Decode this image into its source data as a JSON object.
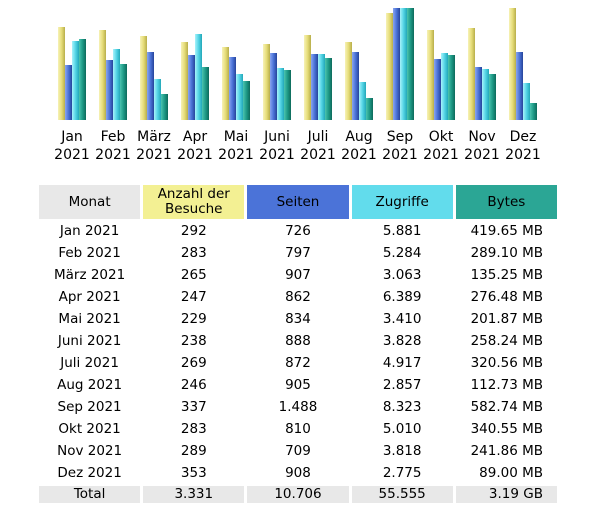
{
  "chart_data": {
    "type": "bar",
    "categories": [
      "Jan 2021",
      "Feb 2021",
      "März 2021",
      "Apr 2021",
      "Mai 2021",
      "Juni 2021",
      "Juli 2021",
      "Aug 2021",
      "Sep 2021",
      "Okt 2021",
      "Nov 2021",
      "Dez 2021"
    ],
    "category_lines": [
      [
        "Jan",
        "2021"
      ],
      [
        "Feb",
        "2021"
      ],
      [
        "März",
        "2021"
      ],
      [
        "Apr",
        "2021"
      ],
      [
        "Mai",
        "2021"
      ],
      [
        "Juni",
        "2021"
      ],
      [
        "Juli",
        "2021"
      ],
      [
        "Aug",
        "2021"
      ],
      [
        "Sep",
        "2021"
      ],
      [
        "Okt",
        "2021"
      ],
      [
        "Nov",
        "2021"
      ],
      [
        "Dez",
        "2021"
      ]
    ],
    "series": [
      {
        "name": "Anzahl der Besuche",
        "color": "#ece58c",
        "values": [
          292,
          283,
          265,
          247,
          229,
          238,
          269,
          246,
          337,
          283,
          289,
          353
        ]
      },
      {
        "name": "Seiten",
        "color": "#4b73d8",
        "values": [
          726,
          797,
          907,
          862,
          834,
          888,
          872,
          905,
          1488,
          810,
          709,
          908
        ]
      },
      {
        "name": "Zugriffe",
        "color": "#62dcec",
        "values": [
          5881,
          5284,
          3063,
          6389,
          3410,
          3828,
          4917,
          2857,
          8323,
          5010,
          3818,
          2775
        ]
      },
      {
        "name": "Bytes",
        "color": "#2ba695",
        "values": [
          419.65,
          289.1,
          135.25,
          276.48,
          201.87,
          258.24,
          320.56,
          112.73,
          582.74,
          340.55,
          241.86,
          89.0
        ]
      }
    ],
    "scaling": "each series scaled to its own maximum",
    "legend": "none",
    "grid": false
  },
  "table": {
    "headers": {
      "month": "Monat",
      "visits_line1": "Anzahl der",
      "visits_line2": "Besuche",
      "pages": "Seiten",
      "hits": "Zugriffe",
      "bytes": "Bytes"
    },
    "rows": [
      {
        "month": "Jan 2021",
        "visits": "292",
        "pages": "726",
        "hits": "5.881",
        "bytes": "419.65 MB"
      },
      {
        "month": "Feb 2021",
        "visits": "283",
        "pages": "797",
        "hits": "5.284",
        "bytes": "289.10 MB"
      },
      {
        "month": "März 2021",
        "visits": "265",
        "pages": "907",
        "hits": "3.063",
        "bytes": "135.25 MB"
      },
      {
        "month": "Apr 2021",
        "visits": "247",
        "pages": "862",
        "hits": "6.389",
        "bytes": "276.48 MB"
      },
      {
        "month": "Mai 2021",
        "visits": "229",
        "pages": "834",
        "hits": "3.410",
        "bytes": "201.87 MB"
      },
      {
        "month": "Juni 2021",
        "visits": "238",
        "pages": "888",
        "hits": "3.828",
        "bytes": "258.24 MB"
      },
      {
        "month": "Juli 2021",
        "visits": "269",
        "pages": "872",
        "hits": "4.917",
        "bytes": "320.56 MB"
      },
      {
        "month": "Aug 2021",
        "visits": "246",
        "pages": "905",
        "hits": "2.857",
        "bytes": "112.73 MB"
      },
      {
        "month": "Sep 2021",
        "visits": "337",
        "pages": "1.488",
        "hits": "8.323",
        "bytes": "582.74 MB"
      },
      {
        "month": "Okt 2021",
        "visits": "283",
        "pages": "810",
        "hits": "5.010",
        "bytes": "340.55 MB"
      },
      {
        "month": "Nov 2021",
        "visits": "289",
        "pages": "709",
        "hits": "3.818",
        "bytes": "241.86 MB"
      },
      {
        "month": "Dez 2021",
        "visits": "353",
        "pages": "908",
        "hits": "2.775",
        "bytes": "89.00 MB"
      }
    ],
    "total": {
      "label": "Total",
      "visits": "3.331",
      "pages": "10.706",
      "hits": "55.555",
      "bytes": "3.19 GB"
    }
  }
}
